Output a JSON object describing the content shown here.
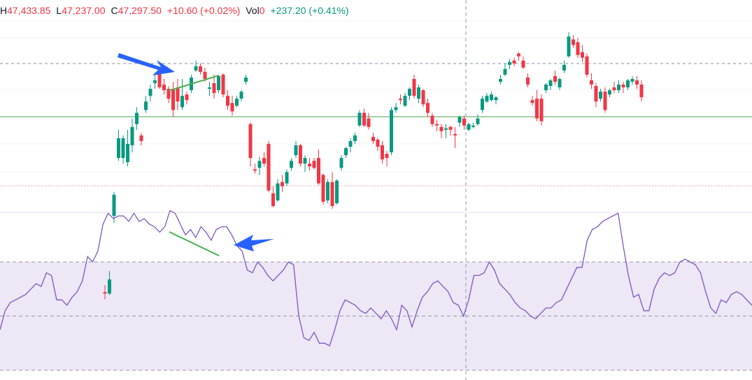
{
  "header": {
    "high_label": "H",
    "high_value": "47,433.85",
    "low_label": "L",
    "low_value": "47,237.00",
    "close_label": "C",
    "close_value": "47,297.50",
    "change": "+10.60 (+0.02%)",
    "vol_label": "Vol",
    "vol_value": "0",
    "extra_change": "+237.20 (+0.41%)"
  },
  "colors": {
    "up": "#089981",
    "down": "#f23645",
    "rsi_line": "#7e57c2",
    "rsi_band": "#ede7f6",
    "trendline": "#4caf50",
    "arrow": "#2962ff",
    "price_level": "#4caf50",
    "dashed_level": "#9598a1",
    "pane_separator": "#e0e3eb"
  },
  "chart_data": {
    "type": "candlestick",
    "candles": [
      [
        45610,
        45660,
        45560,
        45600
      ],
      [
        45600,
        45760,
        45590,
        45700
      ],
      [
        46150,
        46320,
        46100,
        46300
      ],
      [
        46560,
        46760,
        46540,
        46700
      ],
      [
        46560,
        46720,
        46520,
        46700
      ],
      [
        46530,
        46760,
        46500,
        46660
      ],
      [
        46650,
        46840,
        46600,
        46780
      ],
      [
        46800,
        46920,
        46760,
        46880
      ],
      [
        46720,
        46740,
        46650,
        46680
      ],
      [
        46900,
        47000,
        46880,
        46960
      ],
      [
        47000,
        47080,
        46960,
        47050
      ],
      [
        47090,
        47150,
        47050,
        47110
      ],
      [
        47160,
        47180,
        47050,
        47060
      ],
      [
        47080,
        47120,
        47010,
        47040
      ],
      [
        47050,
        47070,
        46950,
        46980
      ],
      [
        47050,
        47100,
        46850,
        46900
      ],
      [
        47060,
        47120,
        46900,
        46960
      ],
      [
        46920,
        47120,
        46900,
        47000
      ],
      [
        47010,
        47030,
        46940,
        46970
      ],
      [
        47040,
        47150,
        47020,
        47130
      ],
      [
        47180,
        47250,
        47170,
        47210
      ],
      [
        47210,
        47230,
        47150,
        47170
      ],
      [
        47170,
        47200,
        47100,
        47120
      ],
      [
        47050,
        47100,
        47000,
        47060
      ],
      [
        47090,
        47150,
        46980,
        47020
      ],
      [
        47040,
        47150,
        47020,
        47140
      ],
      [
        47150,
        47160,
        46990,
        47010
      ],
      [
        47000,
        47040,
        46900,
        46930
      ],
      [
        46950,
        47000,
        46860,
        46890
      ],
      [
        46930,
        47000,
        46920,
        46980
      ],
      [
        46980,
        47040,
        46960,
        47030
      ],
      [
        47100,
        47150,
        47080,
        47130
      ],
      [
        46800,
        46810,
        46500,
        46560
      ],
      [
        46480,
        46520,
        46450,
        46470
      ],
      [
        46490,
        46570,
        46440,
        46540
      ],
      [
        46560,
        46600,
        46500,
        46520
      ],
      [
        46660,
        46680,
        46320,
        46330
      ],
      [
        46310,
        46360,
        46210,
        46220
      ],
      [
        46260,
        46410,
        46250,
        46380
      ],
      [
        46390,
        46440,
        46320,
        46360
      ],
      [
        46380,
        46480,
        46360,
        46460
      ],
      [
        46490,
        46560,
        46470,
        46540
      ],
      [
        46580,
        46680,
        46560,
        46650
      ],
      [
        46650,
        46660,
        46500,
        46520
      ],
      [
        46520,
        46580,
        46460,
        46560
      ],
      [
        46520,
        46560,
        46470,
        46500
      ],
      [
        46540,
        46560,
        46480,
        46490
      ],
      [
        46560,
        46620,
        46370,
        46380
      ],
      [
        46440,
        46450,
        46230,
        46250
      ],
      [
        46260,
        46410,
        46240,
        46390
      ],
      [
        46390,
        46460,
        46200,
        46220
      ],
      [
        46240,
        46410,
        46230,
        46400
      ],
      [
        46490,
        46580,
        46470,
        46560
      ],
      [
        46580,
        46640,
        46560,
        46630
      ],
      [
        46640,
        46700,
        46600,
        46680
      ],
      [
        46680,
        46740,
        46660,
        46720
      ],
      [
        46790,
        46900,
        46780,
        46880
      ],
      [
        46880,
        46910,
        46780,
        46790
      ],
      [
        46840,
        46880,
        46760,
        46780
      ],
      [
        46710,
        46740,
        46660,
        46680
      ],
      [
        46690,
        46700,
        46610,
        46640
      ],
      [
        46650,
        46680,
        46520,
        46550
      ],
      [
        46590,
        46610,
        46500,
        46560
      ],
      [
        46600,
        46920,
        46580,
        46900
      ],
      [
        46900,
        46950,
        46880,
        46920
      ],
      [
        46980,
        47010,
        46940,
        46970
      ],
      [
        46930,
        47020,
        46920,
        47000
      ],
      [
        47000,
        47060,
        46970,
        47050
      ],
      [
        47120,
        47150,
        46980,
        47000
      ],
      [
        46980,
        47080,
        46950,
        47060
      ],
      [
        47040,
        47050,
        46920,
        46940
      ],
      [
        46950,
        46980,
        46850,
        46880
      ],
      [
        46860,
        46880,
        46780,
        46800
      ],
      [
        46800,
        46830,
        46750,
        46790
      ],
      [
        46780,
        46800,
        46700,
        46750
      ],
      [
        46760,
        46800,
        46700,
        46770
      ],
      [
        46780,
        46790,
        46720,
        46760
      ],
      [
        46730,
        46780,
        46630,
        46720
      ],
      [
        46810,
        46860,
        46780,
        46850
      ],
      [
        46840,
        46860,
        46760,
        46790
      ],
      [
        46760,
        46810,
        46750,
        46800
      ],
      [
        46780,
        46810,
        46770,
        46790
      ],
      [
        46800,
        46870,
        46790,
        46840
      ],
      [
        46900,
        47000,
        46880,
        46980
      ],
      [
        46960,
        47020,
        46950,
        47000
      ],
      [
        46970,
        47030,
        46960,
        47010
      ],
      [
        46970,
        47000,
        46940,
        46990
      ],
      [
        47100,
        47150,
        47080,
        47120
      ],
      [
        47150,
        47230,
        47140,
        47190
      ],
      [
        47220,
        47260,
        47190,
        47240
      ],
      [
        47250,
        47270,
        47210,
        47230
      ],
      [
        47300,
        47310,
        47250,
        47280
      ],
      [
        47250,
        47280,
        47190,
        47200
      ],
      [
        47130,
        47160,
        47060,
        47080
      ],
      [
        46970,
        47000,
        46930,
        46950
      ],
      [
        46980,
        47040,
        46820,
        46840
      ],
      [
        46980,
        47010,
        46790,
        46820
      ],
      [
        47040,
        47090,
        47020,
        47080
      ],
      [
        47070,
        47120,
        47040,
        47110
      ],
      [
        47140,
        47180,
        47080,
        47100
      ],
      [
        47060,
        47130,
        47040,
        47120
      ],
      [
        47180,
        47250,
        47160,
        47220
      ],
      [
        47280,
        47450,
        47270,
        47420
      ],
      [
        47400,
        47430,
        47340,
        47360
      ],
      [
        47380,
        47410,
        47270,
        47290
      ],
      [
        47310,
        47360,
        47240,
        47270
      ],
      [
        47280,
        47300,
        47130,
        47150
      ],
      [
        47110,
        47160,
        47050,
        47080
      ],
      [
        47070,
        47090,
        46920,
        46960
      ],
      [
        46980,
        47050,
        46960,
        47030
      ],
      [
        47030,
        47060,
        46880,
        46900
      ],
      [
        47010,
        47050,
        46990,
        47040
      ],
      [
        47060,
        47100,
        47020,
        47040
      ],
      [
        47040,
        47110,
        47020,
        47080
      ],
      [
        47080,
        47100,
        47020,
        47060
      ],
      [
        47060,
        47120,
        47040,
        47110
      ],
      [
        47100,
        47140,
        47080,
        47120
      ],
      [
        47110,
        47140,
        47050,
        47080
      ],
      [
        47080,
        47110,
        46960,
        46990
      ]
    ],
    "rsi": [
      45,
      52,
      55,
      56,
      57,
      58,
      60,
      62,
      61,
      66,
      65,
      56,
      56,
      54,
      57,
      59,
      63,
      72,
      70,
      74,
      84,
      88,
      86,
      87,
      87,
      85,
      88,
      85,
      86,
      84,
      83,
      81,
      83,
      89,
      88,
      84,
      80,
      82,
      79,
      83,
      81,
      78,
      82,
      83,
      83,
      80,
      76,
      74,
      67,
      66,
      70,
      68,
      65,
      63,
      65,
      67,
      70,
      69,
      50,
      42,
      41,
      44,
      40,
      40,
      39,
      45,
      52,
      56,
      55,
      54,
      52,
      51,
      53,
      51,
      49,
      52,
      49,
      45,
      54,
      52,
      46,
      52,
      57,
      59,
      62,
      63,
      61,
      59,
      55,
      54,
      50,
      56,
      65,
      65,
      66,
      70,
      67,
      62,
      60,
      58,
      55,
      53,
      52,
      50,
      49,
      51,
      53,
      53,
      55,
      56,
      60,
      64,
      68,
      68,
      78,
      82,
      83,
      85,
      86,
      87,
      88,
      76,
      65,
      57,
      58,
      52,
      52,
      60,
      64,
      66,
      65,
      66,
      70,
      71,
      70,
      69,
      66,
      59,
      53,
      51,
      56,
      55,
      58,
      59,
      58,
      56,
      54
    ],
    "annotations": [
      "bearish divergence trendline on price",
      "bearish divergence trendline on RSI",
      "arrow pointing at price trendline",
      "arrow pointing at RSI trendline"
    ]
  }
}
